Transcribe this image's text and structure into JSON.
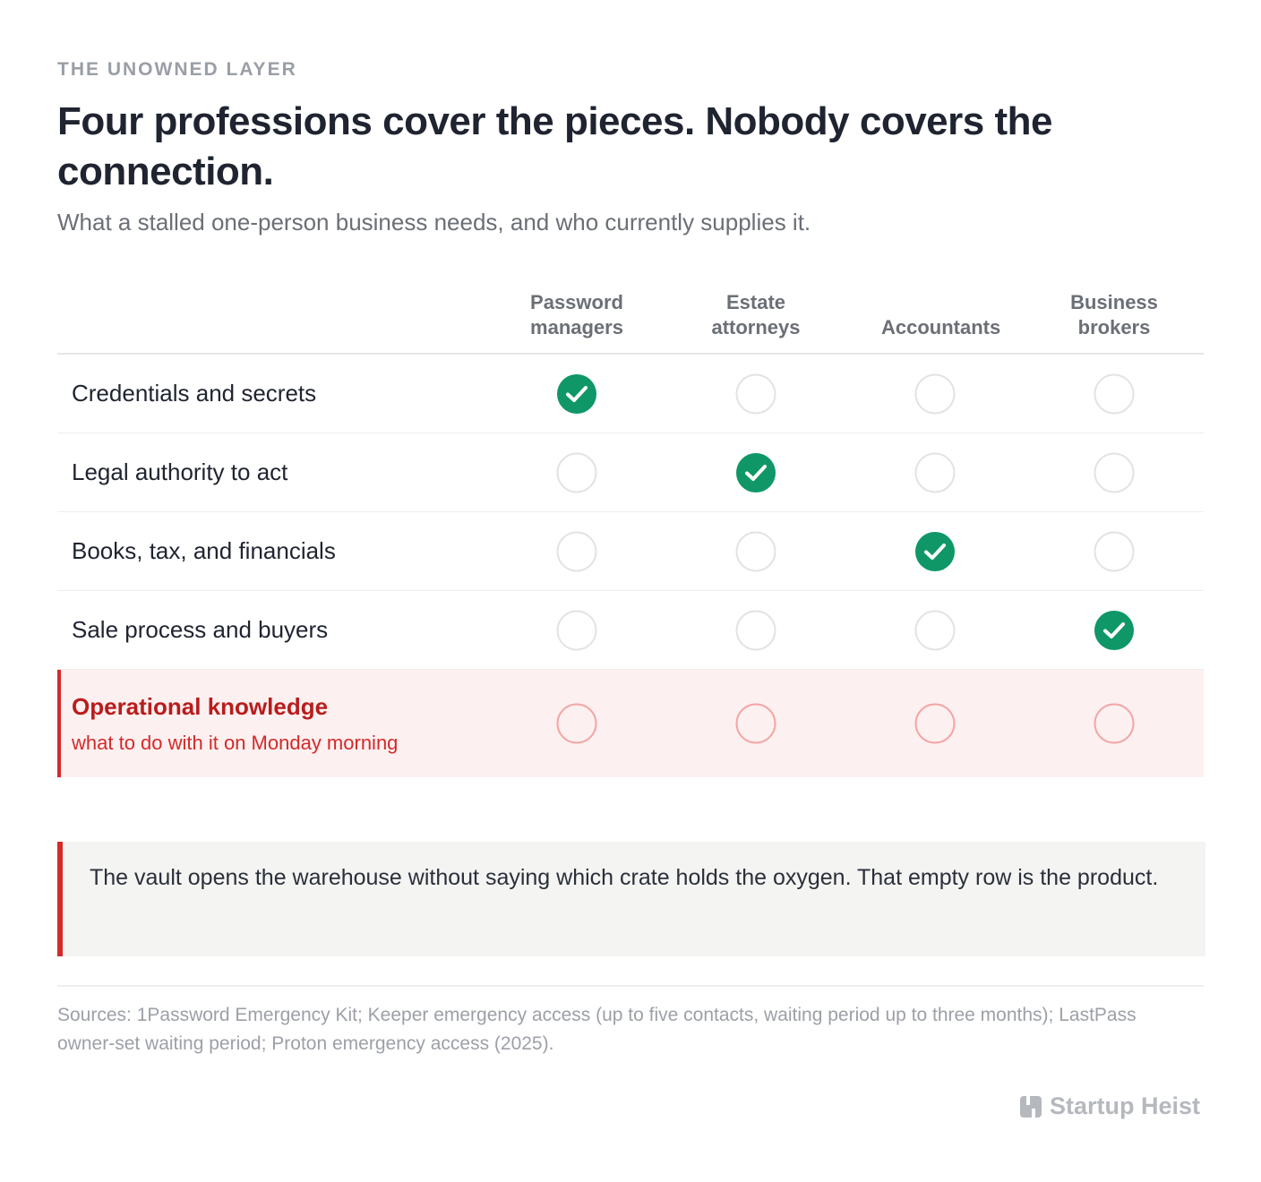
{
  "eyebrow": "THE UNOWNED LAYER",
  "title": "Four professions cover the pieces. Nobody covers the connection.",
  "subtitle": "What a stalled one-person business needs, and who currently supplies it.",
  "table": {
    "columns": [
      "Password managers",
      "Estate attorneys",
      "Accountants",
      "Business brokers"
    ],
    "rows": [
      {
        "label": "Credentials and secrets",
        "covered": [
          true,
          false,
          false,
          false
        ]
      },
      {
        "label": "Legal authority to act",
        "covered": [
          false,
          true,
          false,
          false
        ]
      },
      {
        "label": "Books, tax, and financials",
        "covered": [
          false,
          false,
          true,
          false
        ]
      },
      {
        "label": "Sale process and buyers",
        "covered": [
          false,
          false,
          false,
          true
        ]
      },
      {
        "label": "Operational knowledge",
        "note": "what to do with it on Monday morning",
        "covered": [
          false,
          false,
          false,
          false
        ],
        "highlight": true
      }
    ]
  },
  "callout": "The vault opens the warehouse without saying which crate holds the oxygen. That empty row is the product.",
  "sources": "Sources: 1Password Emergency Kit; Keeper emergency access (up to five contacts, waiting period up to three months); LastPass owner-set waiting period; Proton emergency access (2025).",
  "brand": "Startup Heist"
}
